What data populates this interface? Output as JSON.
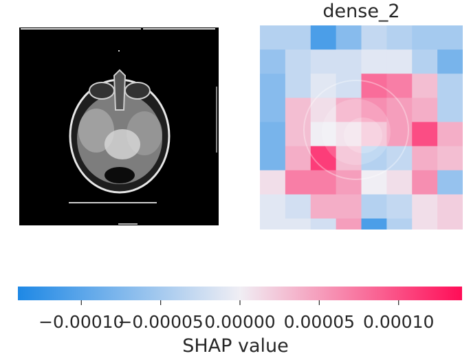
{
  "panel": {
    "title": "dense_2"
  },
  "chart_data": {
    "type": "heatmap",
    "title": "dense_2",
    "grid_rows": 8,
    "grid_cols": 8,
    "values": [
      [
        -4e-05,
        -4e-05,
        -0.00011,
        -7e-05,
        -3e-05,
        -4e-05,
        -5e-05,
        -5e-05
      ],
      [
        -6e-05,
        -3e-05,
        -2e-05,
        -2e-05,
        -1e-05,
        -1e-05,
        -4e-05,
        -8e-05
      ],
      [
        -7e-05,
        -3e-05,
        -1e-05,
        -2e-05,
        8e-05,
        7e-05,
        3e-05,
        -4e-05
      ],
      [
        -7e-05,
        3e-05,
        1e-05,
        4e-05,
        6e-05,
        5e-05,
        4e-05,
        -4e-05
      ],
      [
        -8e-05,
        3e-05,
        0.0,
        1e-05,
        3e-05,
        5e-05,
        0.0001,
        4e-05
      ],
      [
        -8e-05,
        4e-05,
        0.00011,
        3e-05,
        -4e-05,
        -3e-05,
        4e-05,
        3e-05
      ],
      [
        1e-05,
        7e-05,
        7e-05,
        5e-05,
        0.0,
        1e-05,
        6e-05,
        -6e-05
      ],
      [
        -1e-05,
        -2e-05,
        4e-05,
        4e-05,
        -4e-05,
        -3e-05,
        1e-05,
        2e-05
      ]
    ],
    "extra_bottom_cells": [
      {
        "col": 0,
        "value": -1e-05
      },
      {
        "col": 1,
        "value": -1e-05
      },
      {
        "col": 2,
        "value": -2e-05
      },
      {
        "col": 3,
        "value": 5e-05
      },
      {
        "col": 4,
        "value": -0.00011
      },
      {
        "col": 5,
        "value": -4e-05
      },
      {
        "col": 6,
        "value": 1e-05
      },
      {
        "col": 7,
        "value": 2e-05
      }
    ],
    "colorbar": {
      "label": "SHAP value",
      "range": [
        -0.00014,
        0.00014
      ],
      "ticks": [
        -0.0001,
        -5e-05,
        0.0,
        5e-05,
        0.0001
      ],
      "tick_labels": [
        "−0.00010",
        "−0.00005",
        "0.00000",
        "0.00005",
        "0.00010"
      ],
      "colors": {
        "negative": "#1e88e5",
        "center": "#f0eef4",
        "positive": "#ff0d57"
      }
    }
  }
}
